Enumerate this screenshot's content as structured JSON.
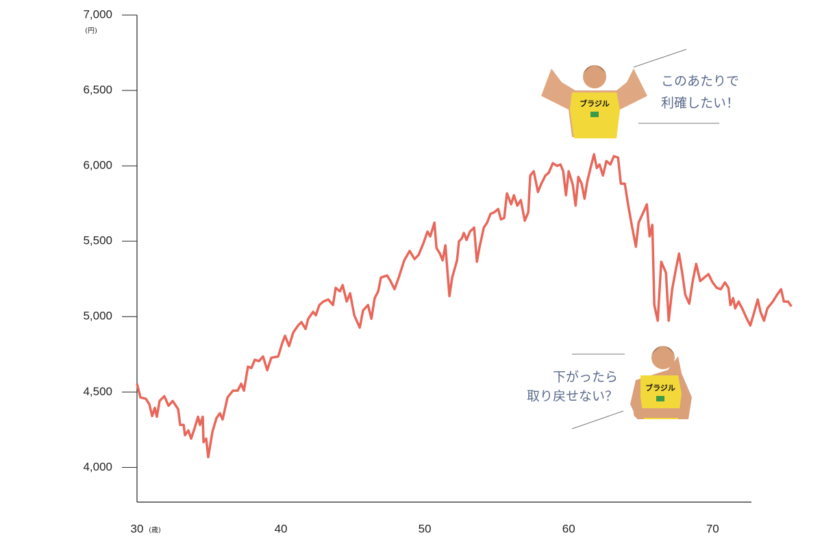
{
  "chart_data": {
    "type": "line",
    "y_unit": "(円)",
    "x_unit": "(歳)",
    "xlim": [
      30,
      72.7
    ],
    "xticks": [
      30,
      40,
      50,
      60,
      70
    ],
    "ylim": [
      3770,
      7000
    ],
    "yticks": [
      {
        "value": 4000,
        "label": "4,000"
      },
      {
        "value": 4500,
        "label": "4,500"
      },
      {
        "value": 5000,
        "label": "5,000"
      },
      {
        "value": 5500,
        "label": "5,500"
      },
      {
        "value": 6000,
        "label": "6,000"
      },
      {
        "value": 6500,
        "label": "6,500"
      },
      {
        "value": 7000,
        "label": "7,000"
      }
    ],
    "annotations": [
      [
        "このあたりで",
        "利確したい！"
      ],
      [
        "下がったら",
        "取り戻せない？"
      ]
    ],
    "shirt_labels": [
      "ブラジル",
      "ブラジル"
    ],
    "series": [
      {
        "color": "#e8675a",
        "x": [
          30,
          30.24,
          30.62,
          30.86,
          31.05,
          31.24,
          31.38,
          31.57,
          31.9,
          32.19,
          32.48,
          32.86,
          33,
          33.24,
          33.33,
          33.57,
          33.76,
          34,
          34.24,
          34.38,
          34.57,
          34.62,
          34.81,
          34.95,
          35.24,
          35.52,
          35.76,
          35.95,
          36.29,
          36.67,
          37,
          37.24,
          37.43,
          37.71,
          37.95,
          38.19,
          38.48,
          38.76,
          39.05,
          39.33,
          39.81,
          40.1,
          40.29,
          40.57,
          40.86,
          41.19,
          41.43,
          41.71,
          41.9,
          42.24,
          42.43,
          42.67,
          42.95,
          43.29,
          43.62,
          43.81,
          44.1,
          44.29,
          44.57,
          44.81,
          45.1,
          45.48,
          45.71,
          46.05,
          46.29,
          46.52,
          46.76,
          46.95,
          47.38,
          47.62,
          47.9,
          48.19,
          48.57,
          48.95,
          49.29,
          49.57,
          49.9,
          50.19,
          50.38,
          50.67,
          50.81,
          51.05,
          51.24,
          51.43,
          51.71,
          51.9,
          52.24,
          52.38,
          52.57,
          52.71,
          52.9,
          53.14,
          53.43,
          53.62,
          53.81,
          54.1,
          54.33,
          54.57,
          54.81,
          55.1,
          55.29,
          55.52,
          55.71,
          56,
          56.19,
          56.43,
          56.67,
          56.95,
          57.19,
          57.33,
          57.57,
          57.86,
          58.1,
          58.38,
          58.62,
          58.9,
          59.19,
          59.43,
          59.62,
          59.81,
          60,
          60.29,
          60.48,
          60.67,
          60.9,
          61.1,
          61.29,
          61.52,
          61.76,
          61.95,
          62.14,
          62.38,
          62.62,
          62.9,
          63.14,
          63.43,
          63.62,
          63.9,
          64.14,
          64.38,
          64.67,
          64.86,
          65.14,
          65.43,
          65.62,
          65.81,
          65.95,
          66.19,
          66.43,
          66.76,
          66.95,
          67.19,
          67.43,
          67.67,
          67.9,
          68.1,
          68.38,
          68.62,
          68.86,
          69.14,
          69.43,
          69.71,
          70,
          70.29,
          70.57,
          70.86,
          71.1,
          71.24,
          71.43,
          71.57,
          71.81,
          72.1,
          72.38,
          72.62,
          72.9,
          73.14,
          73.33,
          73.57,
          73.81,
          74.19,
          74.48,
          74.76,
          74.95,
          75.24,
          75.48
        ],
        "values": [
          4555,
          4464,
          4455,
          4418,
          4341,
          4395,
          4336,
          4441,
          4473,
          4409,
          4441,
          4386,
          4282,
          4282,
          4214,
          4245,
          4191,
          4259,
          4336,
          4282,
          4336,
          4168,
          4191,
          4068,
          4236,
          4327,
          4359,
          4318,
          4464,
          4509,
          4509,
          4555,
          4509,
          4668,
          4659,
          4714,
          4705,
          4736,
          4645,
          4727,
          4736,
          4827,
          4873,
          4805,
          4895,
          4941,
          4964,
          4918,
          4986,
          5032,
          5009,
          5077,
          5100,
          5114,
          5077,
          5191,
          5168,
          5209,
          5100,
          5155,
          5009,
          4927,
          5041,
          5077,
          4986,
          5123,
          5168,
          5259,
          5273,
          5236,
          5182,
          5259,
          5373,
          5436,
          5382,
          5409,
          5486,
          5564,
          5532,
          5623,
          5455,
          5418,
          5373,
          5473,
          5136,
          5259,
          5373,
          5500,
          5518,
          5555,
          5509,
          5564,
          5591,
          5364,
          5464,
          5591,
          5623,
          5682,
          5691,
          5714,
          5645,
          5655,
          5818,
          5745,
          5805,
          5736,
          5773,
          5636,
          5691,
          5936,
          5964,
          5827,
          5882,
          5936,
          5955,
          6018,
          6000,
          6009,
          5964,
          5805,
          5964,
          5873,
          5736,
          5927,
          5882,
          5782,
          5895,
          5986,
          6077,
          5986,
          6009,
          5936,
          6032,
          6009,
          6064,
          6055,
          5882,
          5882,
          5736,
          5609,
          5464,
          5623,
          5682,
          5745,
          5532,
          5609,
          5077,
          4973,
          5364,
          5291,
          4973,
          5182,
          5305,
          5418,
          5282,
          5145,
          5086,
          5236,
          5350,
          5236,
          5259,
          5282,
          5227,
          5191,
          5182,
          5227,
          5191,
          5077,
          5123,
          5055,
          5100,
          5045,
          4986,
          4941,
          5032,
          5114,
          5032,
          4973,
          5055,
          5100,
          5145,
          5182,
          5100,
          5100,
          5068
        ]
      }
    ]
  }
}
